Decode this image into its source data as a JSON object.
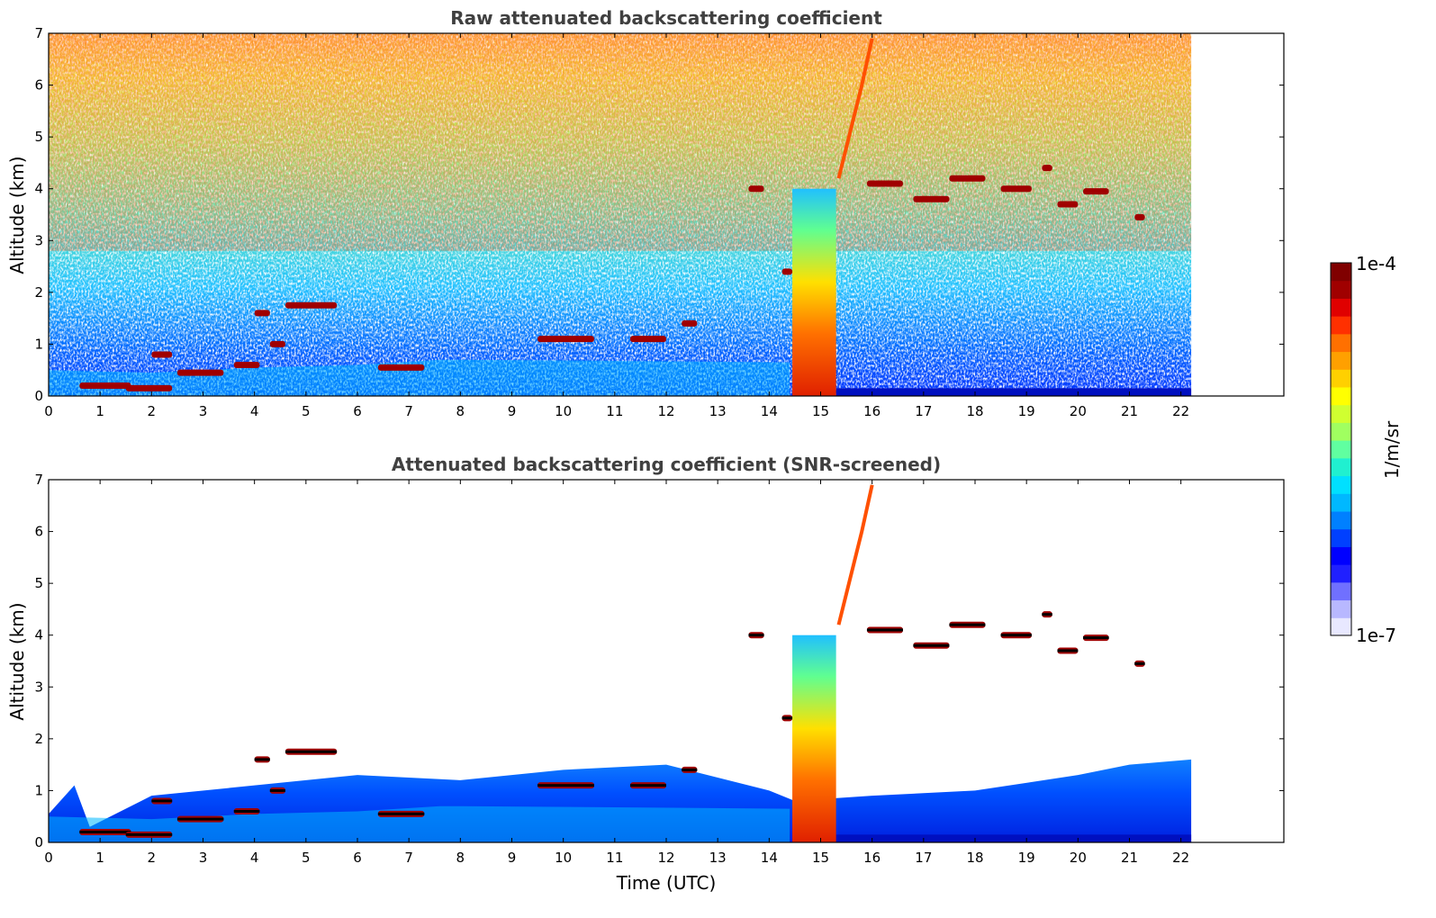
{
  "chart_data": [
    {
      "type": "heatmap",
      "title": "Raw attenuated backscattering coefficient",
      "ylabel": "Altitude (km)",
      "xlabel": "",
      "xlim": [
        0,
        24
      ],
      "ylim": [
        0,
        7
      ],
      "x_ticks": [
        "0",
        "1",
        "2",
        "3",
        "4",
        "5",
        "6",
        "7",
        "8",
        "9",
        "10",
        "11",
        "12",
        "13",
        "14",
        "15",
        "16",
        "17",
        "18",
        "19",
        "20",
        "21",
        "22"
      ],
      "y_ticks": [
        "0",
        "1",
        "2",
        "3",
        "4",
        "5",
        "6",
        "7"
      ],
      "data_end_time": 22.2,
      "screened": false,
      "features": {
        "boundary_layer_top_km": [
          [
            0,
            0.5
          ],
          [
            2,
            0.45
          ],
          [
            4,
            0.55
          ],
          [
            6,
            0.6
          ],
          [
            7.6,
            0.7
          ],
          [
            8,
            0.7
          ],
          [
            14.4,
            0.65
          ]
        ],
        "precipitation_shaft": {
          "time_start": 14.45,
          "time_end": 15.3,
          "altitude_top_km": 4.0
        },
        "fall_streak": [
          [
            15.35,
            4.2
          ],
          [
            15.6,
            5.2
          ],
          [
            15.8,
            6.0
          ],
          [
            16.0,
            6.9
          ]
        ],
        "cloud_segments": [
          {
            "t0": 0.6,
            "t1": 1.6,
            "alt": 0.2
          },
          {
            "t0": 1.5,
            "t1": 2.4,
            "alt": 0.15
          },
          {
            "t0": 2.0,
            "t1": 2.4,
            "alt": 0.8
          },
          {
            "t0": 2.5,
            "t1": 3.4,
            "alt": 0.45
          },
          {
            "t0": 3.6,
            "t1": 4.1,
            "alt": 0.6
          },
          {
            "t0": 4.0,
            "t1": 4.3,
            "alt": 1.6
          },
          {
            "t0": 4.3,
            "t1": 4.6,
            "alt": 1.0
          },
          {
            "t0": 4.6,
            "t1": 5.6,
            "alt": 1.75
          },
          {
            "t0": 6.4,
            "t1": 7.3,
            "alt": 0.55
          },
          {
            "t0": 9.5,
            "t1": 10.6,
            "alt": 1.1
          },
          {
            "t0": 11.3,
            "t1": 12.0,
            "alt": 1.1
          },
          {
            "t0": 12.3,
            "t1": 12.6,
            "alt": 1.4
          },
          {
            "t0": 13.6,
            "t1": 13.9,
            "alt": 4.0
          },
          {
            "t0": 14.25,
            "t1": 14.45,
            "alt": 2.4
          },
          {
            "t0": 15.9,
            "t1": 16.6,
            "alt": 4.1
          },
          {
            "t0": 16.8,
            "t1": 17.5,
            "alt": 3.8
          },
          {
            "t0": 17.5,
            "t1": 18.2,
            "alt": 4.2
          },
          {
            "t0": 18.5,
            "t1": 19.1,
            "alt": 4.0
          },
          {
            "t0": 19.3,
            "t1": 19.5,
            "alt": 4.4
          },
          {
            "t0": 19.6,
            "t1": 20.0,
            "alt": 3.7
          },
          {
            "t0": 20.1,
            "t1": 20.6,
            "alt": 3.95
          },
          {
            "t0": 21.1,
            "t1": 21.3,
            "alt": 3.45
          }
        ]
      }
    },
    {
      "type": "heatmap",
      "title": "Attenuated backscattering coefficient (SNR-screened)",
      "ylabel": "Altitude (km)",
      "xlabel": "Time (UTC)",
      "xlim": [
        0,
        24
      ],
      "ylim": [
        0,
        7
      ],
      "x_ticks": [
        "0",
        "1",
        "2",
        "3",
        "4",
        "5",
        "6",
        "7",
        "8",
        "9",
        "10",
        "11",
        "12",
        "13",
        "14",
        "15",
        "16",
        "17",
        "18",
        "19",
        "20",
        "21",
        "22"
      ],
      "y_ticks": [
        "0",
        "1",
        "2",
        "3",
        "4",
        "5",
        "6",
        "7"
      ],
      "data_end_time": 22.2,
      "screened": true,
      "features": {
        "screened_top_km": [
          [
            0,
            0.55
          ],
          [
            0.5,
            1.1
          ],
          [
            0.8,
            0.3
          ],
          [
            2,
            0.9
          ],
          [
            4,
            1.1
          ],
          [
            6,
            1.3
          ],
          [
            8,
            1.2
          ],
          [
            10,
            1.4
          ],
          [
            12,
            1.5
          ],
          [
            14,
            1.0
          ],
          [
            14.5,
            0.8
          ],
          [
            16,
            0.9
          ],
          [
            18,
            1.0
          ],
          [
            20,
            1.3
          ],
          [
            21,
            1.5
          ],
          [
            22.2,
            1.6
          ]
        ]
      }
    }
  ],
  "colorbar": {
    "label": "1/m/sr",
    "max_label": "1e-4",
    "min_label": "1e-7",
    "colors": [
      "#e8e8ff",
      "#b8b8ff",
      "#7070ff",
      "#2020ff",
      "#0000ff",
      "#0040ff",
      "#0080ff",
      "#00b8ff",
      "#00e0ff",
      "#20f0d0",
      "#60ffa0",
      "#a0ff60",
      "#d0ff30",
      "#ffff00",
      "#ffd000",
      "#ffa000",
      "#ff7000",
      "#ff3000",
      "#e00000",
      "#a00000",
      "#800000"
    ]
  }
}
